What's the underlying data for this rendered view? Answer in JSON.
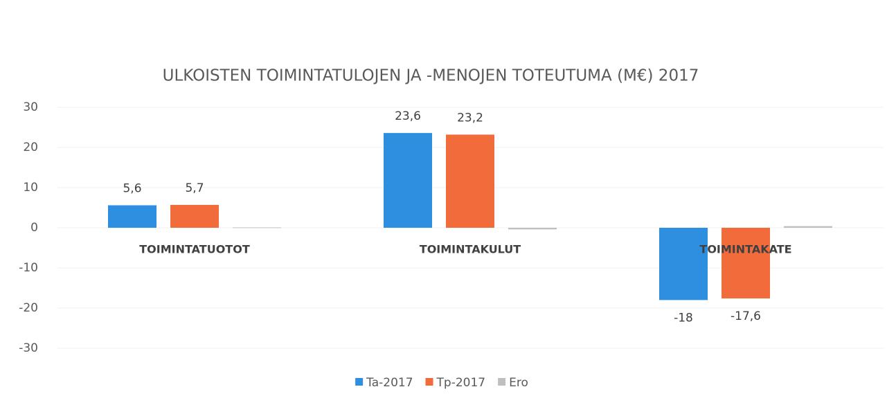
{
  "chart_data": {
    "type": "bar",
    "title": "ULKOISTEN TOIMINTATULOJEN JA -MENOJEN TOTEUTUMA (M€) 2017",
    "categories": [
      "TOIMINTATUOTOT",
      "TOIMINTAKULUT",
      "TOIMINTAKATE"
    ],
    "series": [
      {
        "name": "Ta-2017",
        "color": "#2e8fe0",
        "values": [
          5.6,
          23.6,
          -18
        ],
        "value_labels": [
          "5,6",
          "23,6",
          "-18"
        ]
      },
      {
        "name": "Tp-2017",
        "color": "#f26b3a",
        "values": [
          5.7,
          23.2,
          -17.6
        ],
        "value_labels": [
          "5,7",
          "23,2",
          "-17,6"
        ]
      },
      {
        "name": "Ero",
        "color": "#bfbfbf",
        "values": [
          0.1,
          -0.4,
          0.4
        ]
      }
    ],
    "ylim": [
      -30,
      30
    ],
    "yticks": [
      -30,
      -20,
      -10,
      0,
      10,
      20,
      30
    ],
    "grid": true,
    "legend": "bottom"
  }
}
